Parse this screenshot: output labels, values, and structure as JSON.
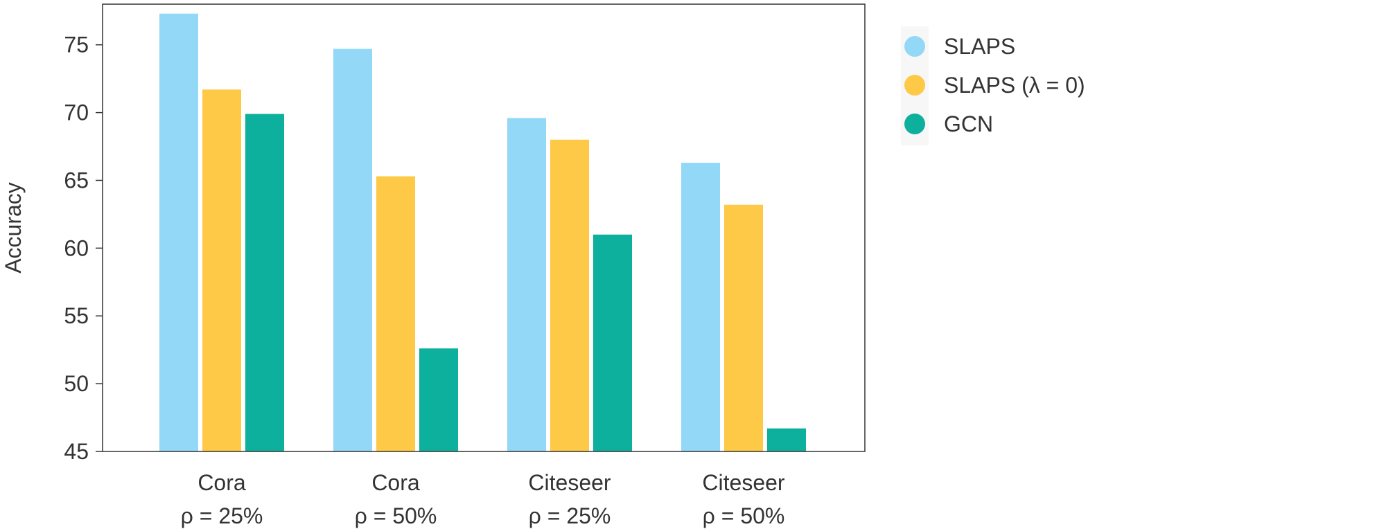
{
  "chart_data": {
    "type": "bar",
    "ylabel": "Accuracy",
    "xlabel": "",
    "ylim": [
      45,
      78
    ],
    "yticks": [
      45,
      50,
      55,
      60,
      65,
      70,
      75
    ],
    "grid": false,
    "legend_position": "right",
    "categories": [
      {
        "name": "Cora",
        "rho": "ρ = 25%"
      },
      {
        "name": "Cora",
        "rho": "ρ = 50%"
      },
      {
        "name": "Citeseer",
        "rho": "ρ = 25%"
      },
      {
        "name": "Citeseer",
        "rho": "ρ = 50%"
      }
    ],
    "series": [
      {
        "name": "SLAPS",
        "color": "#93d9f7",
        "values": [
          77.3,
          74.7,
          69.6,
          66.3
        ]
      },
      {
        "name": "SLAPS (λ = 0)",
        "color": "#fec946",
        "values": [
          71.7,
          65.3,
          68.0,
          63.2
        ]
      },
      {
        "name": "GCN",
        "color": "#0cb09c",
        "values": [
          69.9,
          52.6,
          61.0,
          46.7
        ]
      }
    ]
  }
}
